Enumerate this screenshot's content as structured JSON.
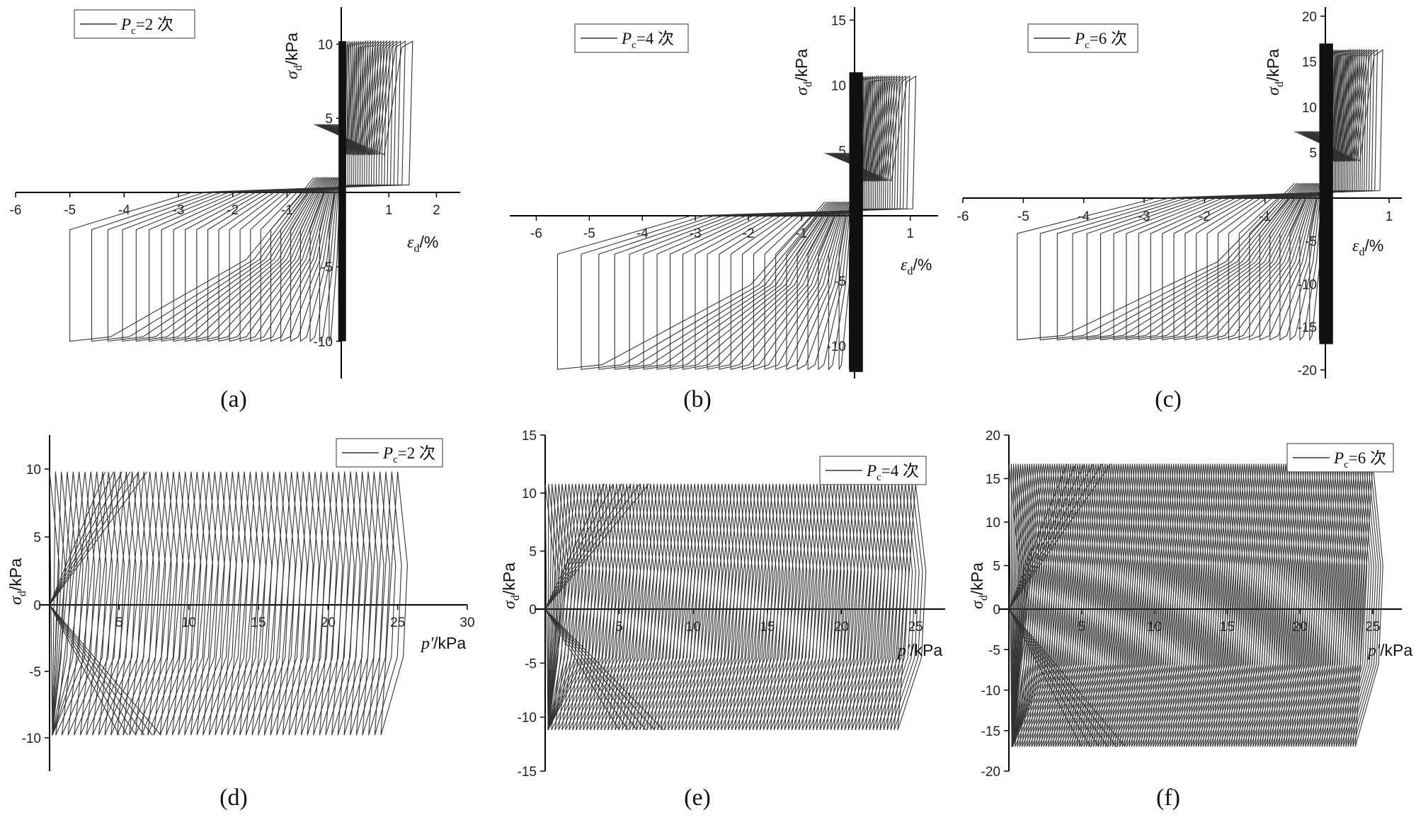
{
  "chart_data": [
    {
      "id": "a",
      "type": "line",
      "panel_label": "(a)",
      "legend": {
        "prefix": "P",
        "sub": "c",
        "suffix": "=2 次"
      },
      "xlabel": {
        "sym": "ε",
        "sub": "d",
        "unit": "/%"
      },
      "ylabel": {
        "sym": "σ",
        "sub": "d",
        "unit": "/kPa"
      },
      "xticks": [
        "-6",
        "-5",
        "-4",
        "-3",
        "-2",
        "-1",
        "1",
        "2"
      ],
      "yticks": [
        "-10",
        "-5",
        "5",
        "10"
      ],
      "xlim": [
        -6,
        2.5
      ],
      "ylim": [
        -12.5,
        12.5
      ],
      "loops": {
        "x_min_start": -5.0,
        "x_min_end": -0.05,
        "x_max_start": 1.5,
        "x_max_end": 0.1,
        "count": 24,
        "y_top": 10.2,
        "y_bot": -10
      },
      "dense_band": {
        "x": [
          -0.05,
          0.1
        ],
        "y": [
          -10,
          10.2
        ]
      }
    },
    {
      "id": "b",
      "type": "line",
      "panel_label": "(b)",
      "legend": {
        "prefix": "P",
        "sub": "c",
        "suffix": "=4 次"
      },
      "xlabel": {
        "sym": "ε",
        "sub": "d",
        "unit": "/%"
      },
      "ylabel": {
        "sym": "σ",
        "sub": "d",
        "unit": "/kPa"
      },
      "xticks": [
        "-6",
        "-5",
        "-4",
        "-3",
        "-2",
        "-1",
        "1"
      ],
      "yticks": [
        "-10",
        "-5",
        "5",
        "10",
        "15"
      ],
      "xlim": [
        -6.5,
        1.5
      ],
      "ylim": [
        -12.5,
        16
      ],
      "loops": {
        "x_min_start": -5.6,
        "x_min_end": -0.1,
        "x_max_start": 1.1,
        "x_max_end": 0.1,
        "count": 24,
        "y_top": 10.7,
        "y_bot": -11.8
      },
      "dense_band": {
        "x": [
          -0.1,
          0.15
        ],
        "y": [
          -12,
          11
        ]
      }
    },
    {
      "id": "c",
      "type": "line",
      "panel_label": "(c)",
      "legend": {
        "prefix": "P",
        "sub": "c",
        "suffix": "=6 次"
      },
      "xlabel": {
        "sym": "ε",
        "sub": "d",
        "unit": "/%"
      },
      "ylabel": {
        "sym": "σ",
        "sub": "d",
        "unit": "/kPa"
      },
      "xticks": [
        "-6",
        "-5",
        "-4",
        "-3",
        "-2",
        "-1",
        "1"
      ],
      "yticks": [
        "-20",
        "-15",
        "-10",
        "-5",
        "5",
        "10",
        "15",
        "20"
      ],
      "xlim": [
        -6,
        1.2
      ],
      "ylim": [
        -21,
        21
      ],
      "loops": {
        "x_min_start": -5.1,
        "x_min_end": -0.1,
        "x_max_start": 0.9,
        "x_max_end": 0.1,
        "count": 26,
        "y_top": 16.3,
        "y_bot": -16.5
      },
      "dense_band": {
        "x": [
          -0.1,
          0.12
        ],
        "y": [
          -17,
          17
        ]
      }
    },
    {
      "id": "d",
      "type": "line",
      "panel_label": "(d)",
      "legend": {
        "prefix": "P",
        "sub": "c",
        "suffix": "=2 次"
      },
      "xlabel": {
        "sym": "p'",
        "sub": "",
        "unit": "/kPa"
      },
      "ylabel": {
        "sym": "σ",
        "sub": "d",
        "unit": "/kPa"
      },
      "xticks": [
        "5",
        "10",
        "15",
        "20",
        "25",
        "30"
      ],
      "yticks": [
        "-10",
        "-5",
        "0",
        "5",
        "10"
      ],
      "xlim": [
        0,
        30
      ],
      "ylim": [
        -12.5,
        12.5
      ],
      "paths": {
        "p_start": 0,
        "p_end": 25,
        "count": 60,
        "y_top": 9.8,
        "y_bot": -9.8
      }
    },
    {
      "id": "e",
      "type": "line",
      "panel_label": "(e)",
      "legend": {
        "prefix": "P",
        "sub": "c",
        "suffix": "=4 次"
      },
      "xlabel": {
        "sym": "p'",
        "sub": "",
        "unit": "/kPa"
      },
      "ylabel": {
        "sym": "σ",
        "sub": "d",
        "unit": "/kPa"
      },
      "xticks": [
        "5",
        "10",
        "15",
        "20",
        "25"
      ],
      "yticks": [
        "-15",
        "-10",
        "-5",
        "0",
        "5",
        "10",
        "15"
      ],
      "xlim": [
        0,
        27
      ],
      "ylim": [
        -15,
        15
      ],
      "paths": {
        "p_start": 0,
        "p_end": 25,
        "count": 110,
        "y_top": 10.8,
        "y_bot": -11.2
      }
    },
    {
      "id": "f",
      "type": "line",
      "panel_label": "(f)",
      "legend": {
        "prefix": "P",
        "sub": "c",
        "suffix": "=6 次"
      },
      "xlabel": {
        "sym": "p'",
        "sub": "",
        "unit": "/kPa"
      },
      "ylabel": {
        "sym": "σ",
        "sub": "d",
        "unit": "/kPa"
      },
      "xticks": [
        "5",
        "10",
        "15",
        "20",
        "25"
      ],
      "yticks": [
        "-20",
        "-15",
        "-10",
        "-5",
        "0",
        "5",
        "10",
        "15",
        "20"
      ],
      "xlim": [
        0,
        27
      ],
      "ylim": [
        -20,
        20
      ],
      "paths": {
        "p_start": 0,
        "p_end": 25,
        "count": 160,
        "y_top": 16.7,
        "y_bot": -17
      }
    }
  ]
}
